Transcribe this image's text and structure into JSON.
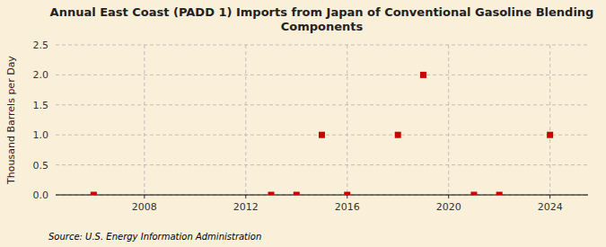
{
  "chart_data": {
    "type": "scatter",
    "title": "Annual East Coast (PADD 1) Imports from Japan of Conventional Gasoline Blending\nComponents",
    "y_label": "Thousand Barrels per Day",
    "annotations": [
      "Source: U.S. Energy Information Administration"
    ],
    "x": [
      2006,
      2013,
      2014,
      2015,
      2016,
      2018,
      2019,
      2021,
      2022,
      2024
    ],
    "values": [
      0,
      0,
      0,
      1.0,
      0,
      1.0,
      2.0,
      0,
      0,
      1.0
    ],
    "color": "#cc0000",
    "marker": "square",
    "xlim": [
      2004.5,
      2025.5
    ],
    "ylim": [
      0,
      2.5
    ],
    "xticks": [
      2008,
      2012,
      2016,
      2020,
      2024
    ],
    "yticks": [
      {
        "value": 0,
        "label": "0.0"
      },
      0.5,
      {
        "value": 1,
        "label": "1.0"
      },
      1.5,
      {
        "value": 2,
        "label": "2.0"
      },
      2.5
    ],
    "grid": true
  }
}
